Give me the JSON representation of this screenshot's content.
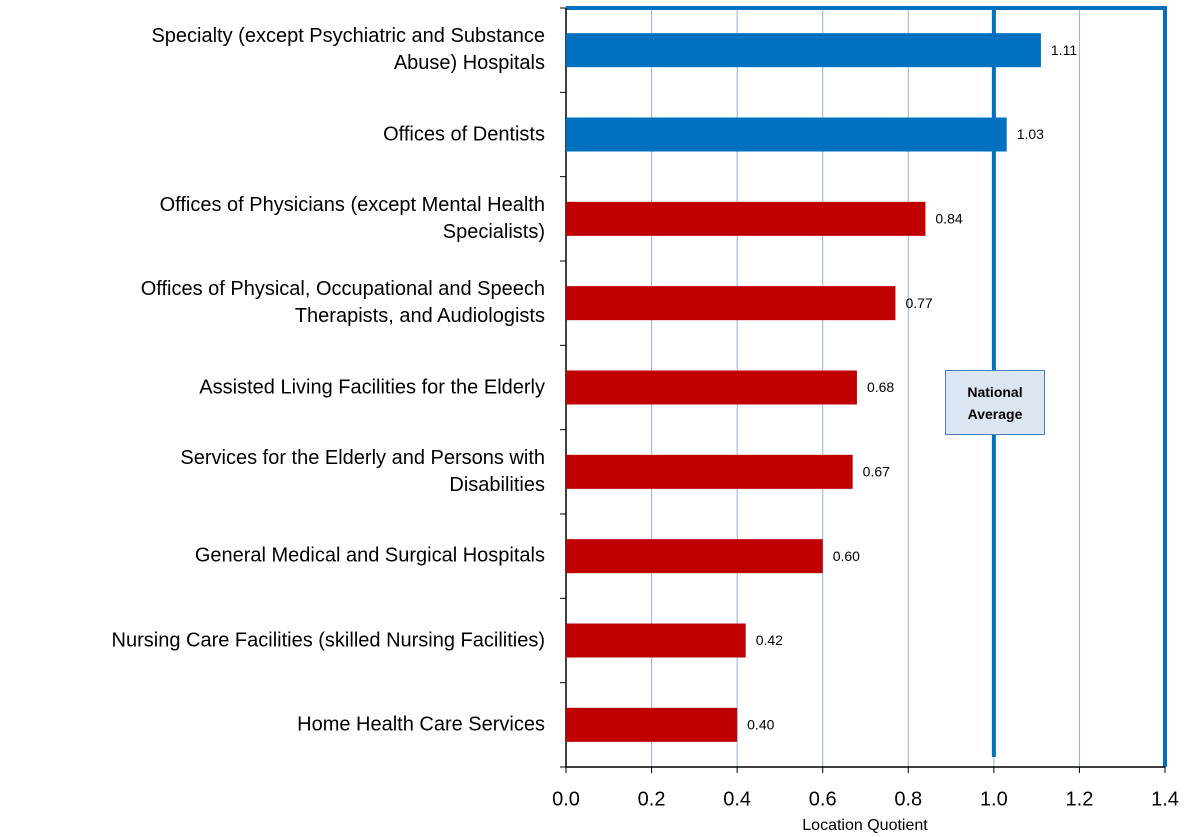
{
  "chart_data": {
    "type": "hbar",
    "categories": [
      "Specialty (except Psychiatric and Substance\nAbuse) Hospitals",
      "Offices of Dentists",
      "Offices of Physicians (except Mental Health\nSpecialists)",
      "Offices of Physical, Occupational and Speech\nTherapists, and Audiologists",
      "Assisted Living Facilities for the Elderly",
      "Services for the Elderly and Persons with\nDisabilities",
      "General Medical and Surgical Hospitals",
      "Nursing Care Facilities (skilled Nursing Facilities)",
      "Home Health Care Services"
    ],
    "values": [
      1.11,
      1.03,
      0.84,
      0.77,
      0.68,
      0.67,
      0.6,
      0.42,
      0.4
    ],
    "value_labels": [
      "1.11",
      "1.03",
      "0.84",
      "0.77",
      "0.68",
      "0.67",
      "0.60",
      "0.42",
      "0.40"
    ],
    "colors": [
      "#0070c0",
      "#0070c0",
      "#c00000",
      "#c00000",
      "#c00000",
      "#c00000",
      "#c00000",
      "#c00000",
      "#c00000"
    ],
    "xlabel": "Location Quotient",
    "xlim": [
      0,
      1.4
    ],
    "xticks": [
      {
        "value": 0,
        "label": "0.0"
      },
      0.2,
      0.4,
      0.6,
      0.8,
      {
        "value": 1,
        "label": "1.0"
      },
      1.2,
      1.4
    ],
    "grid": true,
    "reference_line": {
      "value": 1,
      "label": "National Average",
      "color": "#0070c0"
    }
  }
}
